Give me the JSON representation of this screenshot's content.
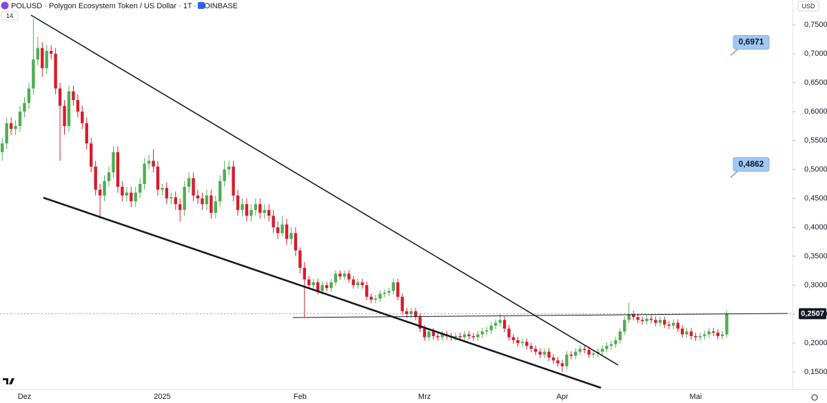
{
  "chart_data": {
    "type": "candlestick",
    "title": "POLUSD · Polygon Ecosystem Token / US Dollar · 1T · COINBASE",
    "currency": "USD",
    "indicator_badge": "14",
    "categories": [
      null,
      null,
      null,
      null,
      null,
      "Dez",
      null,
      null,
      null,
      null,
      null,
      null,
      null,
      null,
      null,
      null,
      null,
      null,
      null,
      null,
      null,
      null,
      null,
      null,
      null,
      null,
      null,
      null,
      null,
      null,
      null,
      null,
      null,
      null,
      null,
      null,
      "2025",
      null,
      null,
      null,
      null,
      null,
      null,
      null,
      null,
      null,
      null,
      null,
      null,
      null,
      null,
      null,
      null,
      null,
      null,
      null,
      null,
      null,
      null,
      null,
      null,
      null,
      null,
      null,
      null,
      null,
      null,
      "Feb",
      null,
      null,
      null,
      null,
      null,
      null,
      null,
      null,
      null,
      null,
      null,
      null,
      null,
      null,
      null,
      null,
      null,
      null,
      null,
      null,
      null,
      null,
      null,
      null,
      null,
      null,
      null,
      "Mrz",
      null,
      null,
      null,
      null,
      null,
      null,
      null,
      null,
      null,
      null,
      null,
      null,
      null,
      null,
      null,
      null,
      null,
      null,
      null,
      null,
      null,
      null,
      null,
      null,
      null,
      null,
      null,
      null,
      null,
      null,
      "Apr",
      null,
      null,
      null,
      null,
      null,
      null,
      null,
      null,
      null,
      null,
      null,
      null,
      null,
      null,
      null,
      null,
      null,
      null,
      null,
      null,
      null,
      null,
      null,
      null,
      null,
      null,
      null,
      null,
      null,
      "Mai",
      null,
      null,
      null,
      null,
      null,
      null,
      null
    ],
    "open": [
      0.53,
      0.545,
      0.58,
      0.57,
      0.575,
      0.6,
      0.615,
      0.64,
      0.69,
      0.71,
      0.675,
      0.705,
      0.7,
      0.64,
      0.61,
      0.575,
      0.635,
      0.62,
      0.6,
      0.58,
      0.545,
      0.505,
      0.465,
      0.455,
      0.48,
      0.495,
      0.53,
      0.47,
      0.455,
      0.46,
      0.445,
      0.46,
      0.475,
      0.51,
      0.515,
      0.505,
      0.465,
      0.468,
      0.45,
      0.452,
      0.44,
      0.43,
      0.47,
      0.485,
      0.455,
      0.45,
      0.44,
      0.455,
      0.425,
      0.445,
      0.48,
      0.5,
      0.505,
      0.455,
      0.43,
      0.44,
      0.42,
      0.43,
      0.44,
      0.425,
      0.43,
      0.42,
      0.4,
      0.39,
      0.405,
      0.38,
      0.39,
      0.36,
      0.33,
      0.31,
      0.3,
      0.305,
      0.29,
      0.3,
      0.295,
      0.305,
      0.32,
      0.315,
      0.32,
      0.31,
      0.3,
      0.305,
      0.3,
      0.28,
      0.275,
      0.277,
      0.285,
      0.287,
      0.29,
      0.305,
      0.28,
      0.255,
      0.25,
      0.255,
      0.245,
      0.225,
      0.21,
      0.22,
      0.212,
      0.21,
      0.215,
      0.212,
      0.21,
      0.212,
      0.21,
      0.215,
      0.212,
      0.21,
      0.215,
      0.22,
      0.222,
      0.23,
      0.235,
      0.24,
      0.225,
      0.21,
      0.205,
      0.2,
      0.202,
      0.195,
      0.19,
      0.185,
      0.18,
      0.185,
      0.175,
      0.17,
      0.165,
      0.16,
      0.18,
      0.178,
      0.185,
      0.19,
      0.188,
      0.18,
      0.182,
      0.185,
      0.19,
      0.195,
      0.198,
      0.205,
      0.22,
      0.24,
      0.25,
      0.245,
      0.24,
      0.238,
      0.242,
      0.24,
      0.235,
      0.24,
      0.232,
      0.23,
      0.235,
      0.225,
      0.215,
      0.22,
      0.212,
      0.21,
      0.212,
      0.215,
      0.22,
      0.218,
      0.212,
      0.215
    ],
    "high": [
      0.555,
      0.59,
      0.59,
      0.585,
      0.61,
      0.625,
      0.65,
      0.76,
      0.73,
      0.72,
      0.715,
      0.715,
      0.71,
      0.65,
      0.62,
      0.645,
      0.645,
      0.63,
      0.61,
      0.59,
      0.555,
      0.515,
      0.475,
      0.49,
      0.505,
      0.54,
      0.54,
      0.48,
      0.47,
      0.47,
      0.47,
      0.485,
      0.52,
      0.525,
      0.535,
      0.515,
      0.475,
      0.478,
      0.46,
      0.462,
      0.45,
      0.48,
      0.495,
      0.495,
      0.465,
      0.46,
      0.465,
      0.465,
      0.455,
      0.49,
      0.515,
      0.515,
      0.515,
      0.465,
      0.45,
      0.45,
      0.44,
      0.45,
      0.45,
      0.44,
      0.44,
      0.43,
      0.41,
      0.42,
      0.415,
      0.4,
      0.4,
      0.365,
      0.34,
      0.316,
      0.311,
      0.311,
      0.306,
      0.306,
      0.311,
      0.326,
      0.326,
      0.326,
      0.326,
      0.316,
      0.311,
      0.311,
      0.306,
      0.286,
      0.283,
      0.291,
      0.293,
      0.296,
      0.312,
      0.311,
      0.286,
      0.261,
      0.261,
      0.261,
      0.251,
      0.231,
      0.226,
      0.226,
      0.218,
      0.221,
      0.221,
      0.218,
      0.218,
      0.218,
      0.221,
      0.221,
      0.218,
      0.221,
      0.226,
      0.228,
      0.236,
      0.241,
      0.25,
      0.246,
      0.231,
      0.216,
      0.211,
      0.208,
      0.208,
      0.201,
      0.196,
      0.191,
      0.191,
      0.191,
      0.181,
      0.176,
      0.171,
      0.186,
      0.186,
      0.191,
      0.196,
      0.196,
      0.194,
      0.188,
      0.191,
      0.196,
      0.201,
      0.204,
      0.211,
      0.226,
      0.246,
      0.27,
      0.256,
      0.251,
      0.246,
      0.248,
      0.248,
      0.246,
      0.246,
      0.246,
      0.238,
      0.241,
      0.241,
      0.231,
      0.226,
      0.226,
      0.218,
      0.218,
      0.221,
      0.226,
      0.226,
      0.224,
      0.221,
      0.2557
    ],
    "low": [
      0.515,
      0.535,
      0.56,
      0.56,
      0.565,
      0.59,
      0.605,
      0.63,
      0.68,
      0.66,
      0.665,
      0.69,
      0.63,
      0.515,
      0.56,
      0.565,
      0.61,
      0.59,
      0.57,
      0.535,
      0.495,
      0.455,
      0.415,
      0.445,
      0.47,
      0.485,
      0.46,
      0.445,
      0.445,
      0.435,
      0.435,
      0.45,
      0.465,
      0.5,
      0.495,
      0.455,
      0.455,
      0.44,
      0.44,
      0.43,
      0.41,
      0.42,
      0.46,
      0.445,
      0.44,
      0.43,
      0.43,
      0.415,
      0.415,
      0.435,
      0.47,
      0.49,
      0.445,
      0.42,
      0.42,
      0.41,
      0.41,
      0.42,
      0.415,
      0.415,
      0.41,
      0.39,
      0.38,
      0.385,
      0.37,
      0.37,
      0.35,
      0.32,
      0.245,
      0.294,
      0.294,
      0.284,
      0.284,
      0.289,
      0.289,
      0.299,
      0.309,
      0.309,
      0.304,
      0.294,
      0.294,
      0.294,
      0.274,
      0.269,
      0.269,
      0.271,
      0.279,
      0.281,
      0.284,
      0.274,
      0.249,
      0.244,
      0.244,
      0.239,
      0.219,
      0.204,
      0.204,
      0.206,
      0.204,
      0.204,
      0.206,
      0.204,
      0.204,
      0.204,
      0.204,
      0.206,
      0.204,
      0.204,
      0.209,
      0.214,
      0.216,
      0.224,
      0.229,
      0.219,
      0.204,
      0.199,
      0.194,
      0.194,
      0.189,
      0.184,
      0.179,
      0.174,
      0.174,
      0.169,
      0.164,
      0.159,
      0.15,
      0.154,
      0.172,
      0.172,
      0.179,
      0.182,
      0.174,
      0.174,
      0.176,
      0.179,
      0.184,
      0.189,
      0.192,
      0.199,
      0.214,
      0.234,
      0.239,
      0.234,
      0.232,
      0.232,
      0.234,
      0.229,
      0.229,
      0.226,
      0.224,
      0.224,
      0.219,
      0.209,
      0.209,
      0.206,
      0.204,
      0.204,
      0.206,
      0.209,
      0.212,
      0.206,
      0.206,
      0.21
    ],
    "close": [
      0.545,
      0.58,
      0.57,
      0.575,
      0.6,
      0.615,
      0.64,
      0.69,
      0.71,
      0.675,
      0.705,
      0.7,
      0.64,
      0.61,
      0.575,
      0.635,
      0.62,
      0.6,
      0.58,
      0.545,
      0.505,
      0.465,
      0.455,
      0.48,
      0.495,
      0.53,
      0.47,
      0.455,
      0.46,
      0.445,
      0.46,
      0.475,
      0.51,
      0.515,
      0.505,
      0.465,
      0.468,
      0.45,
      0.452,
      0.44,
      0.43,
      0.47,
      0.485,
      0.455,
      0.45,
      0.44,
      0.455,
      0.425,
      0.445,
      0.48,
      0.5,
      0.505,
      0.455,
      0.43,
      0.44,
      0.42,
      0.43,
      0.44,
      0.425,
      0.43,
      0.42,
      0.4,
      0.39,
      0.405,
      0.38,
      0.39,
      0.36,
      0.33,
      0.31,
      0.3,
      0.305,
      0.29,
      0.3,
      0.295,
      0.305,
      0.32,
      0.315,
      0.32,
      0.31,
      0.3,
      0.305,
      0.3,
      0.28,
      0.275,
      0.277,
      0.285,
      0.287,
      0.29,
      0.305,
      0.28,
      0.255,
      0.25,
      0.255,
      0.245,
      0.225,
      0.21,
      0.22,
      0.212,
      0.21,
      0.215,
      0.212,
      0.21,
      0.212,
      0.21,
      0.215,
      0.212,
      0.21,
      0.215,
      0.22,
      0.222,
      0.23,
      0.235,
      0.24,
      0.225,
      0.21,
      0.205,
      0.2,
      0.202,
      0.195,
      0.19,
      0.185,
      0.18,
      0.185,
      0.175,
      0.17,
      0.165,
      0.16,
      0.18,
      0.178,
      0.185,
      0.19,
      0.188,
      0.18,
      0.182,
      0.185,
      0.19,
      0.195,
      0.198,
      0.205,
      0.22,
      0.24,
      0.25,
      0.245,
      0.24,
      0.238,
      0.242,
      0.24,
      0.235,
      0.24,
      0.232,
      0.23,
      0.235,
      0.225,
      0.215,
      0.22,
      0.212,
      0.21,
      0.212,
      0.215,
      0.22,
      0.218,
      0.212,
      0.215,
      0.2507
    ],
    "up_color": "#4caf50",
    "down_color": "#d81b2c",
    "ylim": [
      0.1202,
      0.7929
    ],
    "yticks": [
      {
        "value": 0.15,
        "label": "0,1500"
      },
      {
        "value": 0.2,
        "label": "0,2000"
      },
      {
        "value": 0.25,
        "label": "0,2500"
      },
      {
        "value": 0.3,
        "label": "0,3000"
      },
      {
        "value": 0.35,
        "label": "0,3500"
      },
      {
        "value": 0.4,
        "label": "0,4000"
      },
      {
        "value": 0.45,
        "label": "0,4500"
      },
      {
        "value": 0.5,
        "label": "0,5000"
      },
      {
        "value": 0.55,
        "label": "0,5500"
      },
      {
        "value": 0.6,
        "label": "0,6000"
      },
      {
        "value": 0.65,
        "label": "0,6500"
      },
      {
        "value": 0.7,
        "label": "0,7000"
      },
      {
        "value": 0.75,
        "label": "0,7500"
      }
    ],
    "grid": false,
    "last_price": {
      "value": 0.2507,
      "label": "0,2507"
    },
    "annotations": [
      {
        "value": 0.6971,
        "label": "0,6971"
      },
      {
        "value": 0.4862,
        "label": "0,4862"
      }
    ]
  }
}
